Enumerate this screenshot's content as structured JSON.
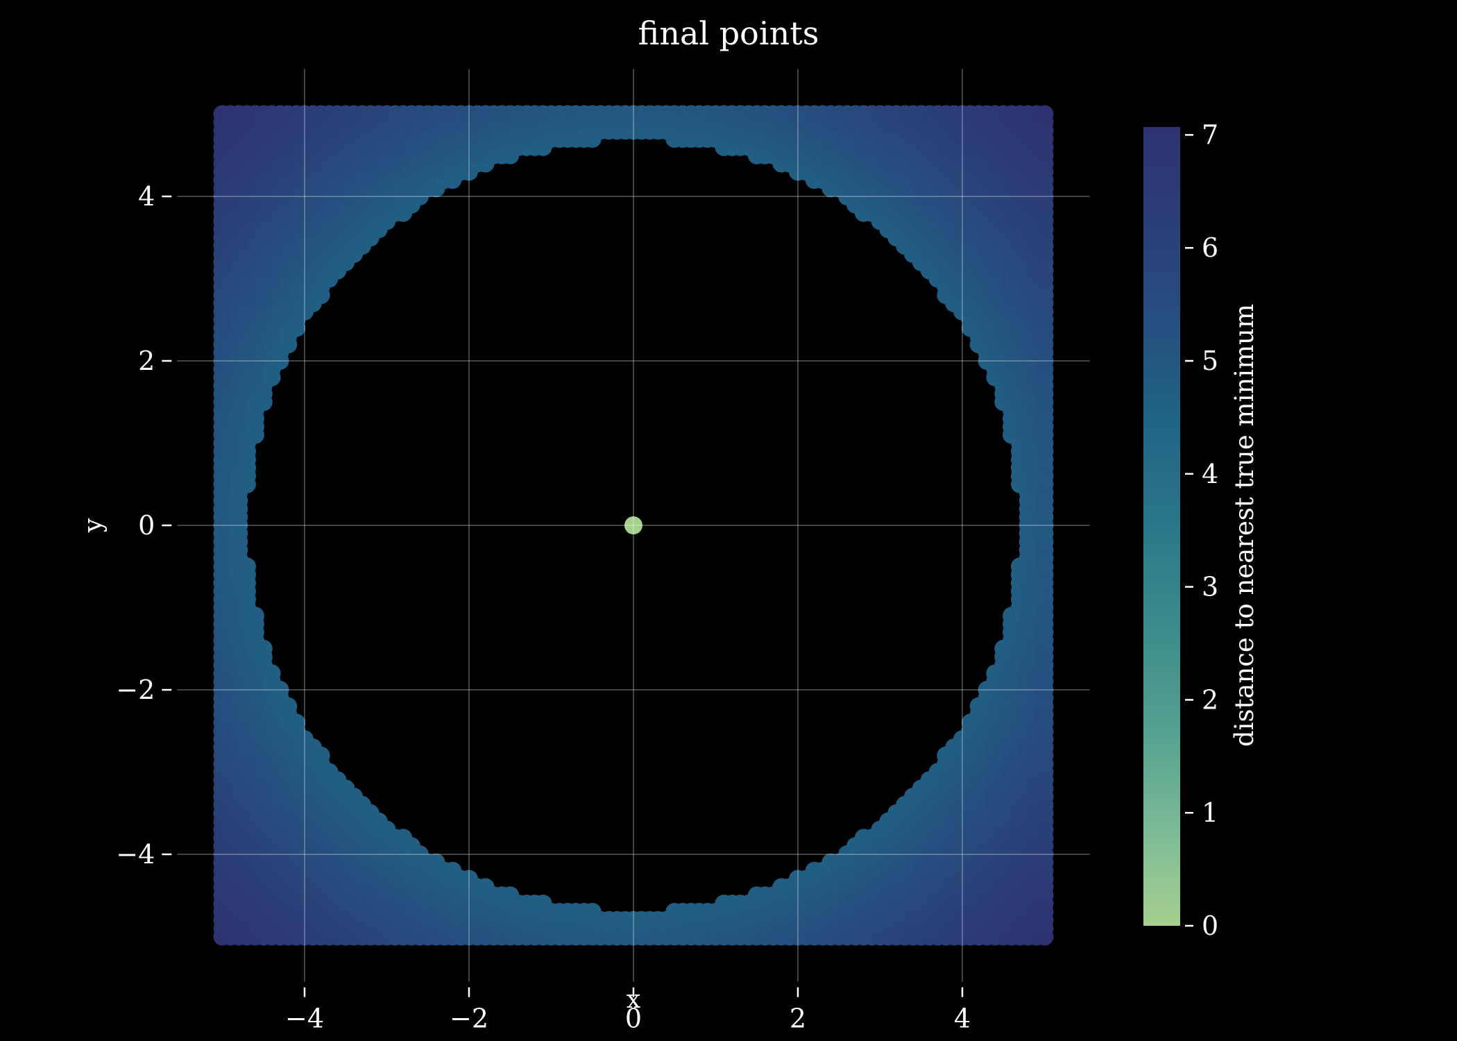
{
  "chart_data": {
    "type": "scatter",
    "title": "final points",
    "xlabel": "x",
    "ylabel": "y",
    "xlim": [
      -5.55,
      5.55
    ],
    "ylim": [
      -5.55,
      5.55
    ],
    "xticks": [
      -4,
      -2,
      0,
      2,
      4
    ],
    "yticks": [
      -4,
      -2,
      0,
      2,
      4
    ],
    "grid": true,
    "colormap": "crest",
    "colorbar": {
      "label": "distance to nearest true minimum",
      "range": [
        0,
        7.07
      ],
      "ticks": [
        0,
        1,
        2,
        3,
        4,
        5,
        6,
        7
      ],
      "stops": [
        "#a5d08e",
        "#7ab997",
        "#52a08f",
        "#3b8c8c",
        "#2a7789",
        "#1f6684",
        "#25507f",
        "#2a3f77",
        "#2e3271"
      ]
    },
    "series": [
      {
        "description_free_points": "grid of final points on [-5,5]x[-5,5] with spacing 0.1 remaining outside radius ~4.7, colored by distance to the minimum at (0,0)",
        "grid_range": [
          -5,
          5
        ],
        "grid_step": 0.1,
        "inner_radius": 4.72
      },
      {
        "points": [
          [
            0,
            0
          ]
        ],
        "color_value": 0
      }
    ]
  }
}
